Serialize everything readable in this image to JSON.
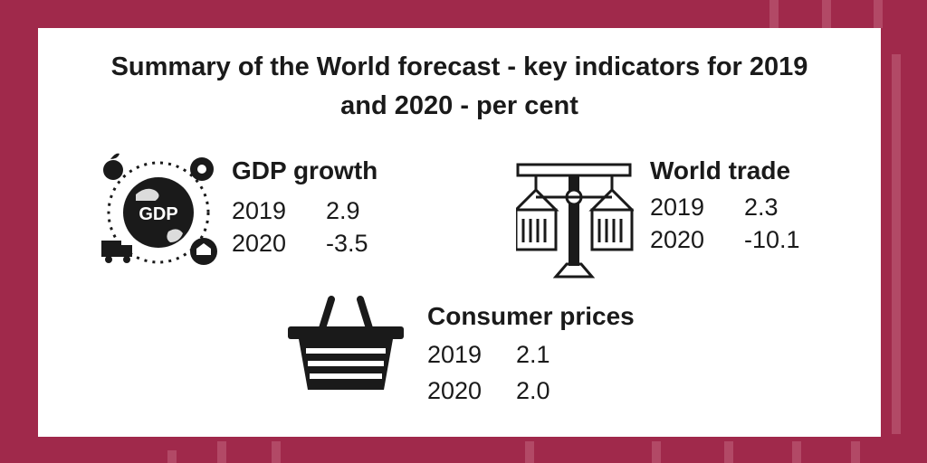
{
  "title": {
    "line1": "Summary of the World forecast - key indicators for 2019",
    "line2": "and 2020 - per cent"
  },
  "indicators": [
    {
      "name": "GDP growth",
      "icon": "gdp-globe-icon",
      "rows": [
        {
          "year": "2019",
          "value": "2.9"
        },
        {
          "year": "2020",
          "value": "-3.5"
        }
      ]
    },
    {
      "name": "World trade",
      "icon": "cargo-crane-icon",
      "rows": [
        {
          "year": "2019",
          "value": "2.3"
        },
        {
          "year": "2020",
          "value": "-10.1"
        }
      ]
    },
    {
      "name": "Consumer prices",
      "icon": "shopping-basket-icon",
      "rows": [
        {
          "year": "2019",
          "value": "2.1"
        },
        {
          "year": "2020",
          "value": "2.0"
        }
      ]
    }
  ],
  "icon_labels": {
    "gdp": "GDP"
  },
  "colors": {
    "background": "#a0294b",
    "card": "#ffffff",
    "text": "#1a1a1a"
  }
}
